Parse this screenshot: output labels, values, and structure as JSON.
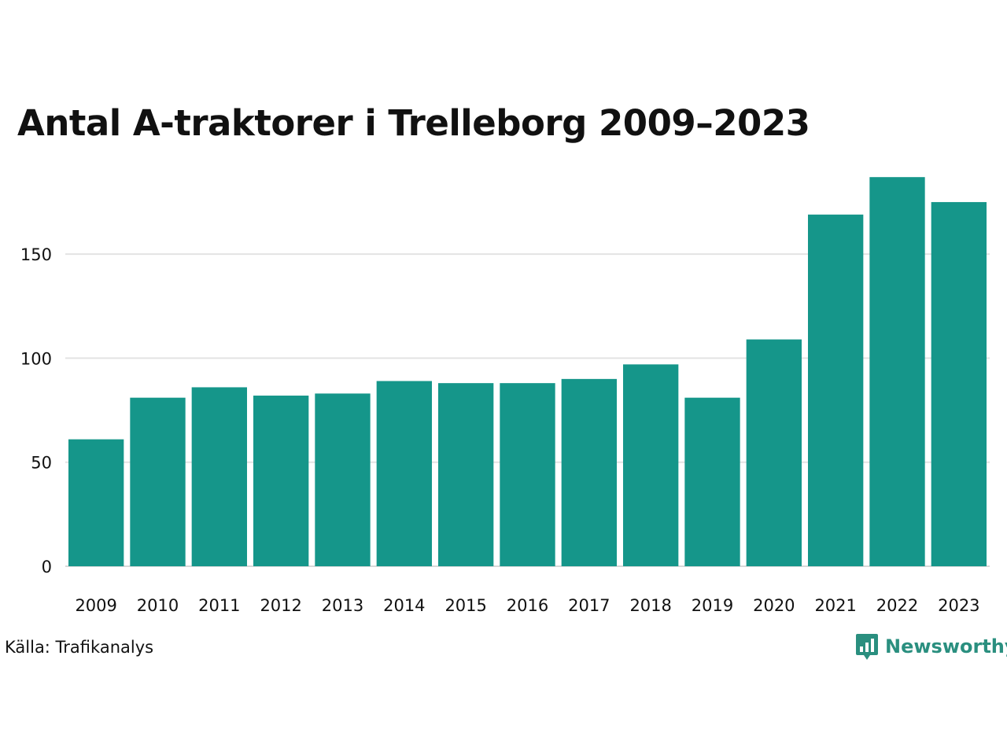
{
  "title": "Antal A-traktorer i Trelleborg 2009–2023",
  "source": "Källa: Trafikanalys",
  "brand": {
    "name": "Newsworthy",
    "icon": "newsworthy-logo-icon",
    "color": "#2a8f7f"
  },
  "colors": {
    "bar": "#15968a",
    "grid": "#e3e3e3",
    "axis": "#d9d9d9"
  },
  "chart_data": {
    "type": "bar",
    "title": "Antal A-traktorer i Trelleborg 2009–2023",
    "xlabel": "",
    "ylabel": "",
    "categories": [
      "2009",
      "2010",
      "2011",
      "2012",
      "2013",
      "2014",
      "2015",
      "2016",
      "2017",
      "2018",
      "2019",
      "2020",
      "2021",
      "2022",
      "2023"
    ],
    "values": [
      61,
      81,
      86,
      82,
      83,
      89,
      88,
      88,
      90,
      97,
      81,
      109,
      169,
      187,
      175
    ],
    "yticks": [
      0,
      50,
      100,
      150
    ],
    "ylim": [
      0,
      187
    ],
    "grid": true
  }
}
